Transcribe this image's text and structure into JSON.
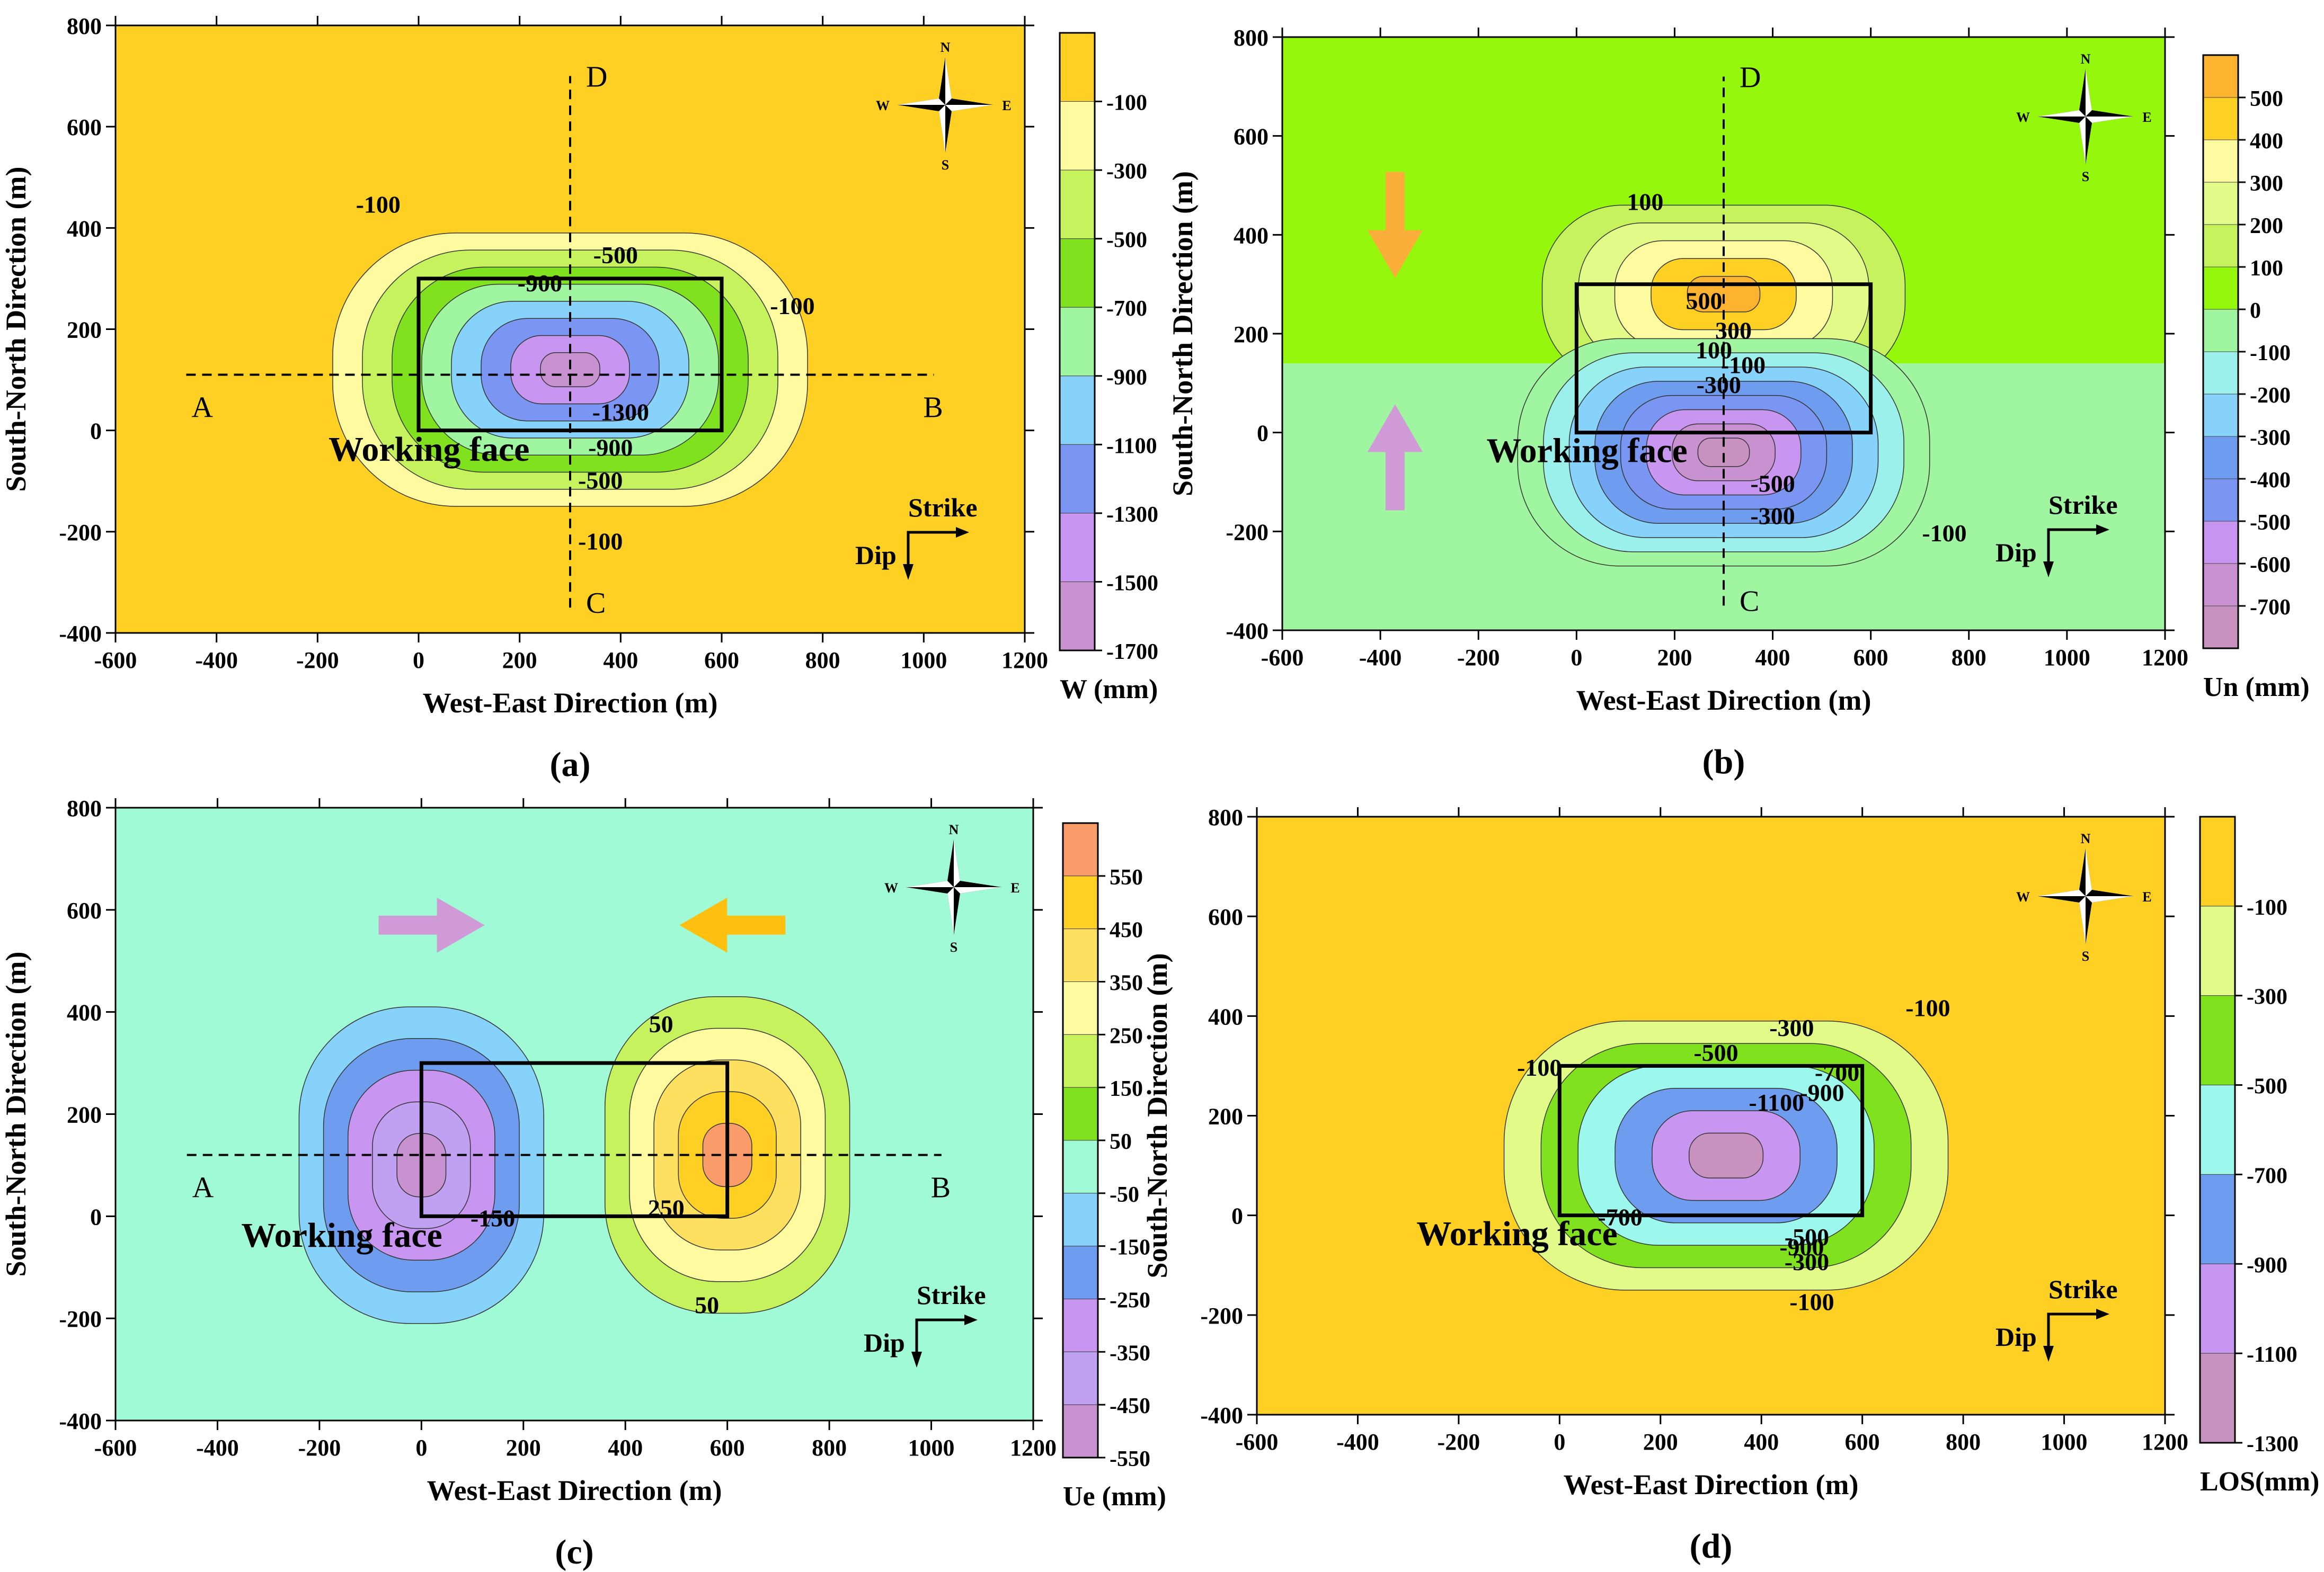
{
  "chart_data": [
    {
      "type": "contour",
      "panel_label": "(a)",
      "quantity": "W",
      "colorbar_label": "W (mm)",
      "xlabel": "West-East Direction (m)",
      "ylabel": "South-North Direction (m)",
      "xlim": [
        -600,
        1200
      ],
      "ylim": [
        -400,
        800
      ],
      "xticks": [
        "-600",
        "-400",
        "-200",
        "0",
        "200",
        "400",
        "600",
        "800",
        "1000",
        "1200"
      ],
      "yticks": [
        "-400",
        "-200",
        "0",
        "200",
        "400",
        "600",
        "800"
      ],
      "background_color": "#FDD023",
      "colorbar": {
        "colors": [
          "#FDD023",
          "#FEFAA0",
          "#C6F25E",
          "#80E21E",
          "#A0F6A0",
          "#86D2FA",
          "#7A96F2",
          "#C896F0",
          "#C892D0"
        ],
        "labels": [
          "-100",
          "-300",
          "-500",
          "-700",
          "-900",
          "-1100",
          "-1300",
          "-1500",
          "-1700"
        ]
      },
      "centers": [
        {
          "cx": 300,
          "cy": 120,
          "rx": 470,
          "ry": 270,
          "sign": -1
        }
      ],
      "contour_labels": [
        {
          "text": "-100",
          "x": -80,
          "y": 430
        },
        {
          "text": "-500",
          "x": 390,
          "y": 330
        },
        {
          "text": "-100",
          "x": 740,
          "y": 230
        },
        {
          "text": "-900",
          "x": 240,
          "y": 275
        },
        {
          "text": "-1300",
          "x": 400,
          "y": 20
        },
        {
          "text": "-900",
          "x": 380,
          "y": -50
        },
        {
          "text": "-500",
          "x": 360,
          "y": -115
        },
        {
          "text": "-100",
          "x": 360,
          "y": -235
        }
      ],
      "annotations": {
        "working_face": {
          "x0": 0,
          "x1": 600,
          "y0": 0,
          "y1": 300,
          "label": "Working face"
        },
        "line_AB": {
          "y": 110,
          "x0": -460,
          "x1": 1020,
          "A": "A",
          "B": "B"
        },
        "line_CD": {
          "x": 300,
          "y0": -350,
          "y1": 700,
          "C": "C",
          "D": "D"
        },
        "compass": [
          "N",
          "S",
          "W",
          "E"
        ],
        "strike_label": "Strike",
        "dip_label": "Dip"
      }
    },
    {
      "type": "contour",
      "panel_label": "(b)",
      "quantity": "Un",
      "colorbar_label": "Un (mm)",
      "xlabel": "West-East Direction (m)",
      "ylabel": "South-North Direction (m)",
      "xlim": [
        -600,
        1200
      ],
      "ylim": [
        -400,
        800
      ],
      "xticks": [
        "-600",
        "-400",
        "-200",
        "0",
        "200",
        "400",
        "600",
        "800",
        "1000",
        "1200"
      ],
      "yticks": [
        "-400",
        "-200",
        "0",
        "200",
        "400",
        "600",
        "800"
      ],
      "background_split_y": 140,
      "background_colors": {
        "above": "#94F70C",
        "below": "#A0F6A0"
      },
      "colorbar": {
        "colors": [
          "#FDB32F",
          "#FDD023",
          "#FEFAA0",
          "#E2FA87",
          "#C6F25E",
          "#94F70C",
          "#A0F6A0",
          "#9CF0EC",
          "#86D2FA",
          "#6E9DF0",
          "#7A96F2",
          "#C896F0",
          "#C892D0",
          "#C892C0"
        ],
        "labels": [
          "500",
          "400",
          "300",
          "200",
          "100",
          "0",
          "-100",
          "-200",
          "-300",
          "-400",
          "-500",
          "-600",
          "-700"
        ]
      },
      "centers": [
        {
          "cx": 300,
          "cy": 280,
          "rx": 370,
          "ry": 180,
          "sign": 1
        },
        {
          "cx": 300,
          "cy": -40,
          "rx": 420,
          "ry": 230,
          "sign": -1
        }
      ],
      "contour_labels": [
        {
          "text": "100",
          "x": 140,
          "y": 450
        },
        {
          "text": "500",
          "x": 260,
          "y": 250
        },
        {
          "text": "300",
          "x": 320,
          "y": 190
        },
        {
          "text": "100",
          "x": 280,
          "y": 150
        },
        {
          "text": "-100",
          "x": 340,
          "y": 120
        },
        {
          "text": "-300",
          "x": 290,
          "y": 80
        },
        {
          "text": "-500",
          "x": 400,
          "y": -120
        },
        {
          "text": "-300",
          "x": 400,
          "y": -185
        },
        {
          "text": "-100",
          "x": 750,
          "y": -220
        }
      ],
      "annotations": {
        "working_face": {
          "x0": 0,
          "x1": 600,
          "y0": 0,
          "y1": 300,
          "label": "Working face"
        },
        "line_CD": {
          "x": 300,
          "y0": -350,
          "y1": 720,
          "C": "C",
          "D": "D"
        },
        "compass": [
          "N",
          "S",
          "W",
          "E"
        ],
        "strike_label": "Strike",
        "dip_label": "Dip",
        "arrows": [
          "down-orange",
          "up-purple"
        ]
      }
    },
    {
      "type": "contour",
      "panel_label": "(c)",
      "quantity": "Ue",
      "colorbar_label": "Ue (mm)",
      "xlabel": "West-East Direction (m)",
      "ylabel": "South-North Direction (m)",
      "xlim": [
        -600,
        1200
      ],
      "ylim": [
        -400,
        800
      ],
      "xticks": [
        "-600",
        "-400",
        "-200",
        "0",
        "200",
        "400",
        "600",
        "800",
        "1000",
        "1200"
      ],
      "yticks": [
        "-400",
        "-200",
        "0",
        "200",
        "400",
        "600",
        "800"
      ],
      "background_color": "#A0FAD6",
      "colorbar": {
        "colors": [
          "#FA9C6A",
          "#FDD023",
          "#FEE060",
          "#FEFAA0",
          "#C6F25E",
          "#80E21E",
          "#A0FAD6",
          "#86D2FA",
          "#6E9DF0",
          "#C896F0",
          "#C0A0F0",
          "#C892D0"
        ],
        "labels": [
          "550",
          "450",
          "350",
          "250",
          "150",
          "50",
          "-50",
          "-150",
          "-250",
          "-350",
          "-450",
          "-550"
        ]
      },
      "centers": [
        {
          "cx": 0,
          "cy": 100,
          "rx": 240,
          "ry": 310,
          "sign": -1
        },
        {
          "cx": 600,
          "cy": 120,
          "rx": 240,
          "ry": 310,
          "sign": 1
        }
      ],
      "contour_labels": [
        {
          "text": "50",
          "x": 470,
          "y": 360
        },
        {
          "text": "250",
          "x": 480,
          "y": 0
        },
        {
          "text": "-150",
          "x": 140,
          "y": -20
        },
        {
          "text": "50",
          "x": 560,
          "y": -190
        }
      ],
      "annotations": {
        "working_face": {
          "x0": 0,
          "x1": 600,
          "y0": 0,
          "y1": 300,
          "label": "Working face"
        },
        "line_AB": {
          "y": 120,
          "x0": -460,
          "x1": 1020,
          "A": "A",
          "B": "B"
        },
        "compass": [
          "N",
          "S",
          "W",
          "E"
        ],
        "strike_label": "Strike",
        "dip_label": "Dip",
        "arrows": [
          "right-purple",
          "left-orange"
        ]
      }
    },
    {
      "type": "contour",
      "panel_label": "(d)",
      "quantity": "LOS",
      "colorbar_label": "LOS(mm)",
      "xlabel": "West-East Direction (m)",
      "ylabel": "South-North Direction (m)",
      "xlim": [
        -600,
        1200
      ],
      "ylim": [
        -400,
        800
      ],
      "xticks": [
        "-600",
        "-400",
        "-200",
        "0",
        "200",
        "400",
        "600",
        "800",
        "1000",
        "1200"
      ],
      "yticks": [
        "-400",
        "-200",
        "0",
        "200",
        "400",
        "600",
        "800"
      ],
      "background_color": "#FDD023",
      "colorbar": {
        "colors": [
          "#FDD023",
          "#E2FA87",
          "#80E21E",
          "#9CF8EC",
          "#6E9DF0",
          "#C896F0",
          "#C892C0"
        ],
        "labels": [
          "-100",
          "-300",
          "-500",
          "-700",
          "-900",
          "-1100",
          "-1300"
        ]
      },
      "centers": [
        {
          "cx": 330,
          "cy": 120,
          "rx": 440,
          "ry": 270,
          "sign": -1
        }
      ],
      "contour_labels": [
        {
          "text": "-100",
          "x": 730,
          "y": 400
        },
        {
          "text": "-300",
          "x": 460,
          "y": 360
        },
        {
          "text": "-500",
          "x": 310,
          "y": 310
        },
        {
          "text": "-700",
          "x": 550,
          "y": 270
        },
        {
          "text": "-900",
          "x": 520,
          "y": 230
        },
        {
          "text": "-1100",
          "x": 430,
          "y": 210
        },
        {
          "text": "-100",
          "x": -40,
          "y": 280
        },
        {
          "text": "-700",
          "x": 120,
          "y": -20
        },
        {
          "text": "-900",
          "x": 480,
          "y": -80
        },
        {
          "text": "-500",
          "x": 490,
          "y": -60
        },
        {
          "text": "-300",
          "x": 490,
          "y": -110
        },
        {
          "text": "-100",
          "x": 500,
          "y": -190
        }
      ],
      "annotations": {
        "working_face": {
          "x0": 0,
          "x1": 600,
          "y0": 0,
          "y1": 300,
          "label": "Working face"
        },
        "compass": [
          "N",
          "S",
          "W",
          "E"
        ],
        "strike_label": "Strike",
        "dip_label": "Dip"
      }
    }
  ]
}
